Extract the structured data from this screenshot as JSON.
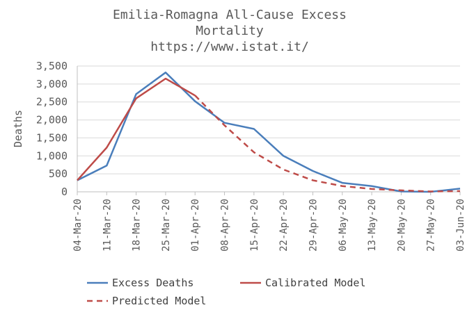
{
  "chart_data": {
    "type": "line",
    "title_lines": [
      "Emilia-Romagna All-Cause Excess",
      "Mortality",
      "https://www.istat.it/"
    ],
    "ylabel": "Deaths",
    "xlabel": "",
    "ylim": [
      0,
      3500
    ],
    "ytick_values": [
      0,
      500,
      1000,
      1500,
      2000,
      2500,
      3000,
      3500
    ],
    "ytick_labels": [
      "0",
      "500",
      "1,000",
      "1,500",
      "2,000",
      "2,500",
      "3,000",
      "3,500"
    ],
    "grid": true,
    "categories": [
      "04-Mar-20",
      "11-Mar-20",
      "18-Mar-20",
      "25-Mar-20",
      "01-Apr-20",
      "08-Apr-20",
      "15-Apr-20",
      "22-Apr-20",
      "29-Apr-20",
      "06-May-20",
      "13-May-20",
      "20-May-20",
      "27-May-20",
      "03-Jun-20"
    ],
    "series": [
      {
        "name": "Excess Deaths",
        "color": "#4a7ebb",
        "style": "solid",
        "points": [
          [
            0,
            320
          ],
          [
            1,
            730
          ],
          [
            2,
            2720
          ],
          [
            3,
            3320
          ],
          [
            4,
            2520
          ],
          [
            5,
            1920
          ],
          [
            6,
            1750
          ],
          [
            7,
            1000
          ],
          [
            8,
            580
          ],
          [
            9,
            250
          ],
          [
            10,
            160
          ],
          [
            11,
            10
          ],
          [
            12,
            0
          ],
          [
            13,
            90
          ]
        ]
      },
      {
        "name": "Calibrated Model",
        "color": "#be4b48",
        "style": "solid",
        "points": [
          [
            0,
            320
          ],
          [
            1,
            1230
          ],
          [
            2,
            2600
          ],
          [
            3,
            3150
          ],
          [
            4,
            2680
          ]
        ]
      },
      {
        "name": "Predicted Model",
        "color": "#be4b48",
        "style": "dashed",
        "points": [
          [
            4,
            2680
          ],
          [
            5,
            1850
          ],
          [
            6,
            1100
          ],
          [
            7,
            620
          ],
          [
            8,
            320
          ],
          [
            9,
            160
          ],
          [
            10,
            80
          ],
          [
            11,
            40
          ],
          [
            12,
            10
          ],
          [
            13,
            20
          ]
        ]
      }
    ],
    "legend": {
      "placement": "bottom",
      "entries": [
        "Excess Deaths",
        "Calibrated Model",
        "Predicted Model"
      ]
    }
  }
}
